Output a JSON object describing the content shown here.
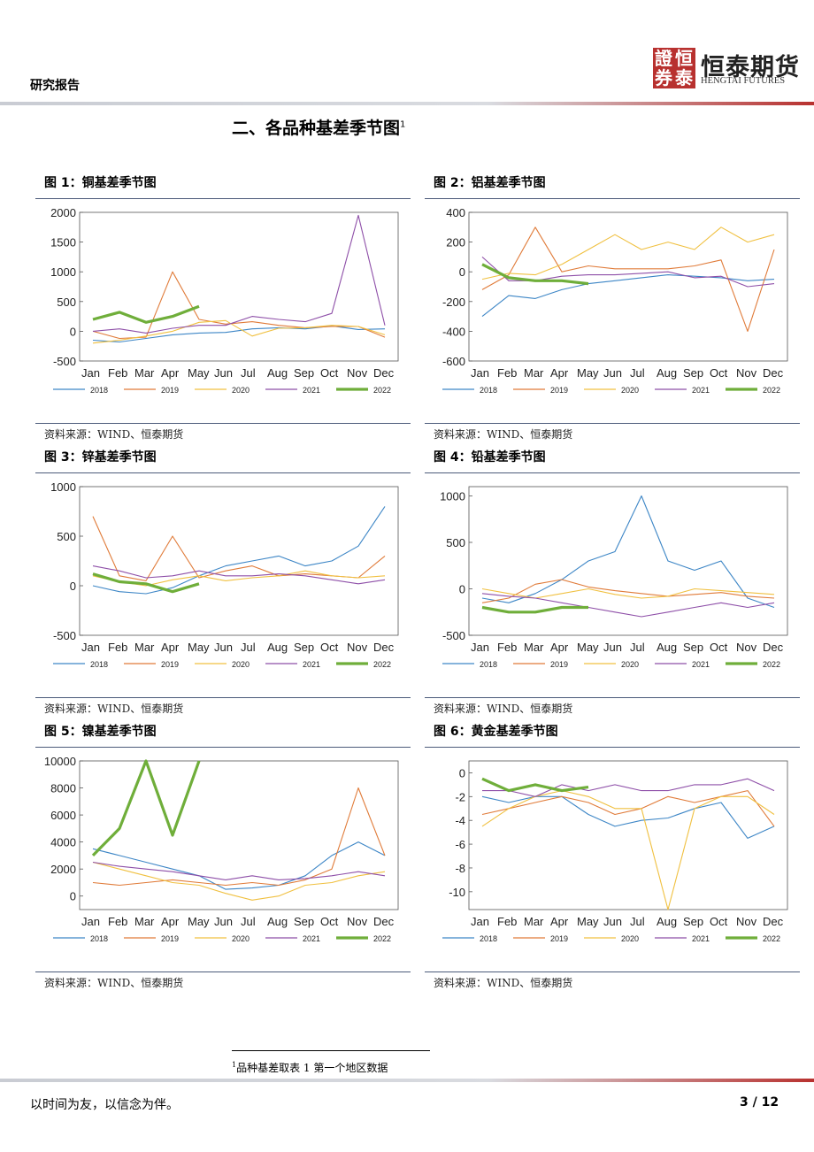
{
  "header": {
    "label": "研究报告",
    "logo_chars": [
      "證",
      "恒",
      "券",
      "泰"
    ],
    "logo_cn": "恒泰期货",
    "logo_en": "HENGTAI FUTURES"
  },
  "section": {
    "title": "二、各品种基差季节图",
    "footnote_ref": "1"
  },
  "colors": {
    "2018": "#3d86c6",
    "2019": "#e07b39",
    "2020": "#f0c040",
    "2021": "#8e4fa8",
    "2022": "#6fae3a"
  },
  "figures": [
    {
      "title": "图 1：铜基差季节图",
      "source": "资料来源：WIND、恒泰期货",
      "chart_data": {
        "type": "line",
        "months": [
          "Jan",
          "Feb",
          "Mar",
          "Apr",
          "May",
          "Jun",
          "Jul",
          "Aug",
          "Sep",
          "Oct",
          "Nov",
          "Dec"
        ],
        "ylim": [
          -500,
          2000
        ],
        "yticks": [
          -500,
          0,
          500,
          1000,
          1500,
          2000
        ],
        "series": [
          {
            "name": "2018",
            "values": [
              -150,
              -180,
              -120,
              -60,
              -30,
              -20,
              40,
              60,
              40,
              90,
              30,
              40
            ]
          },
          {
            "name": "2019",
            "values": [
              0,
              -120,
              -100,
              1000,
              200,
              120,
              160,
              100,
              60,
              80,
              80,
              -100
            ]
          },
          {
            "name": "2020",
            "values": [
              -200,
              -150,
              -80,
              0,
              150,
              180,
              -80,
              50,
              60,
              100,
              80,
              -60
            ]
          },
          {
            "name": "2021",
            "values": [
              0,
              40,
              -30,
              50,
              100,
              100,
              250,
              200,
              160,
              300,
              1950,
              100
            ]
          },
          {
            "name": "2022",
            "values": [
              200,
              320,
              150,
              250,
              420
            ]
          }
        ]
      }
    },
    {
      "title": "图 2：铝基差季节图",
      "source": "资料来源：WIND、恒泰期货",
      "chart_data": {
        "type": "line",
        "months": [
          "Jan",
          "Feb",
          "Mar",
          "Apr",
          "May",
          "Jun",
          "Jul",
          "Aug",
          "Sep",
          "Oct",
          "Nov",
          "Dec"
        ],
        "ylim": [
          -600,
          400
        ],
        "yticks": [
          -600,
          -400,
          -200,
          0,
          200,
          400
        ],
        "series": [
          {
            "name": "2018",
            "values": [
              -300,
              -160,
              -180,
              -120,
              -80,
              -60,
              -40,
              -20,
              -30,
              -40,
              -60,
              -50
            ]
          },
          {
            "name": "2019",
            "values": [
              -120,
              -20,
              300,
              0,
              40,
              20,
              20,
              20,
              40,
              80,
              -400,
              150
            ]
          },
          {
            "name": "2020",
            "values": [
              -50,
              -10,
              -20,
              50,
              150,
              250,
              150,
              200,
              150,
              300,
              200,
              250
            ]
          },
          {
            "name": "2021",
            "values": [
              100,
              -60,
              -60,
              -30,
              -20,
              -20,
              -10,
              0,
              -40,
              -30,
              -100,
              -80
            ]
          },
          {
            "name": "2022",
            "values": [
              50,
              -40,
              -60,
              -60,
              -80
            ]
          }
        ]
      }
    },
    {
      "title": "图 3：锌基差季节图",
      "source": "资料来源：WIND、恒泰期货",
      "chart_data": {
        "type": "line",
        "months": [
          "Jan",
          "Feb",
          "Mar",
          "Apr",
          "May",
          "Jun",
          "Jul",
          "Aug",
          "Sep",
          "Oct",
          "Nov",
          "Dec"
        ],
        "ylim": [
          -500,
          1000
        ],
        "yticks": [
          -500,
          0,
          500,
          1000
        ],
        "series": [
          {
            "name": "2018",
            "values": [
              0,
              -60,
              -80,
              -20,
              100,
              200,
              250,
              300,
              200,
              250,
              400,
              800
            ]
          },
          {
            "name": "2019",
            "values": [
              700,
              100,
              50,
              500,
              80,
              150,
              200,
              100,
              120,
              100,
              80,
              300
            ]
          },
          {
            "name": "2020",
            "values": [
              100,
              40,
              0,
              60,
              100,
              50,
              80,
              100,
              150,
              100,
              80,
              100
            ]
          },
          {
            "name": "2021",
            "values": [
              200,
              150,
              80,
              100,
              150,
              100,
              100,
              120,
              100,
              60,
              20,
              60
            ]
          },
          {
            "name": "2022",
            "values": [
              120,
              40,
              20,
              -60,
              20
            ]
          }
        ]
      }
    },
    {
      "title": "图 4：铅基差季节图",
      "source": "资料来源：WIND、恒泰期货",
      "chart_data": {
        "type": "line",
        "months": [
          "Jan",
          "Feb",
          "Mar",
          "Apr",
          "May",
          "Jun",
          "Jul",
          "Aug",
          "Sep",
          "Oct",
          "Nov",
          "Dec"
        ],
        "ylim": [
          -500,
          1100
        ],
        "yticks": [
          -500,
          0,
          500,
          1000
        ],
        "series": [
          {
            "name": "2018",
            "values": [
              -100,
              -150,
              -50,
              100,
              300,
              400,
              1000,
              300,
              200,
              300,
              -100,
              -200
            ]
          },
          {
            "name": "2019",
            "values": [
              -150,
              -100,
              50,
              100,
              20,
              -20,
              -50,
              -80,
              -60,
              -40,
              -80,
              -100
            ]
          },
          {
            "name": "2020",
            "values": [
              0,
              -50,
              -100,
              -50,
              0,
              -60,
              -100,
              -80,
              0,
              -20,
              -40,
              -60
            ]
          },
          {
            "name": "2021",
            "values": [
              -50,
              -80,
              -100,
              -150,
              -200,
              -250,
              -300,
              -250,
              -200,
              -150,
              -200,
              -150
            ]
          },
          {
            "name": "2022",
            "values": [
              -200,
              -250,
              -250,
              -200,
              -200
            ]
          }
        ]
      }
    },
    {
      "title": "图 5：镍基差季节图",
      "source": "资料来源：WIND、恒泰期货",
      "chart_data": {
        "type": "line",
        "months": [
          "Jan",
          "Feb",
          "Mar",
          "Apr",
          "May",
          "Jun",
          "Jul",
          "Aug",
          "Sep",
          "Oct",
          "Nov",
          "Dec"
        ],
        "ylim": [
          -1000,
          10000
        ],
        "yticks": [
          0,
          2000,
          4000,
          6000,
          8000,
          10000
        ],
        "series": [
          {
            "name": "2018",
            "values": [
              3500,
              3000,
              2500,
              2000,
              1500,
              500,
              600,
              800,
              1500,
              3000,
              4000,
              3000
            ]
          },
          {
            "name": "2019",
            "values": [
              1000,
              800,
              1000,
              1200,
              1000,
              800,
              1000,
              800,
              1200,
              2000,
              8000,
              3000
            ]
          },
          {
            "name": "2020",
            "values": [
              2500,
              2000,
              1500,
              1000,
              800,
              200,
              -300,
              0,
              800,
              1000,
              1500,
              1800
            ]
          },
          {
            "name": "2021",
            "values": [
              2500,
              2200,
              2000,
              1800,
              1500,
              1200,
              1500,
              1200,
              1300,
              1500,
              1800,
              1500
            ]
          },
          {
            "name": "2022",
            "values": [
              3000,
              5000,
              10000,
              4500,
              10000
            ]
          }
        ]
      }
    },
    {
      "title": "图 6：黄金基差季节图",
      "source": "资料来源：WIND、恒泰期货",
      "chart_data": {
        "type": "line",
        "months": [
          "Jan",
          "Feb",
          "Mar",
          "Apr",
          "May",
          "Jun",
          "Jul",
          "Aug",
          "Sep",
          "Oct",
          "Nov",
          "Dec"
        ],
        "ylim": [
          -11.5,
          1
        ],
        "yticks": [
          -10,
          -8,
          -6,
          -4,
          -2,
          0
        ],
        "series": [
          {
            "name": "2018",
            "values": [
              -2,
              -2.5,
              -2,
              -2,
              -3.5,
              -4.5,
              -4,
              -3.8,
              -3,
              -2.5,
              -5.5,
              -4.5
            ]
          },
          {
            "name": "2019",
            "values": [
              -3.5,
              -3,
              -2.5,
              -2,
              -2.5,
              -3.5,
              -3,
              -2,
              -2.5,
              -2,
              -1.5,
              -4.5
            ]
          },
          {
            "name": "2020",
            "values": [
              -4.5,
              -3,
              -2,
              -1.5,
              -2,
              -3,
              -3,
              -11.5,
              -3,
              -2,
              -2,
              -3.5
            ]
          },
          {
            "name": "2021",
            "values": [
              -1.5,
              -1.5,
              -2,
              -1,
              -1.5,
              -1,
              -1.5,
              -1.5,
              -1,
              -1,
              -0.5,
              -1.5
            ]
          },
          {
            "name": "2022",
            "values": [
              -0.5,
              -1.5,
              -1,
              -1.5,
              -1.2
            ]
          }
        ]
      }
    }
  ],
  "footnote": {
    "ref": "1",
    "text": "品种基差取表 1 第一个地区数据"
  },
  "footer": {
    "motto": "以时间为友，以信念为伴。",
    "page": "3 / 12"
  }
}
